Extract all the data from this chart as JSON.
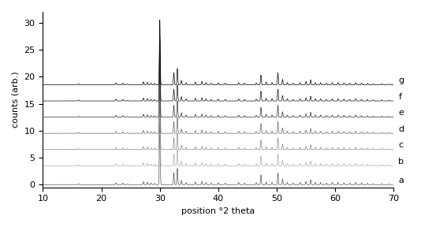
{
  "xlabel": "position °2 theta",
  "ylabel": "counts (arb.)",
  "xlim": [
    10,
    70
  ],
  "ylim": [
    -0.5,
    32
  ],
  "yticks": [
    0,
    5,
    10,
    15,
    20,
    25,
    30
  ],
  "xticks": [
    10,
    20,
    30,
    40,
    50,
    60,
    70
  ],
  "labels": [
    "a",
    "b",
    "c",
    "d",
    "e",
    "f",
    "g"
  ],
  "offsets": [
    0.0,
    3.5,
    6.5,
    9.5,
    12.5,
    15.5,
    18.5
  ],
  "colors": [
    "#555555",
    "#aaaaaa",
    "#888888",
    "#666666",
    "#333333",
    "#111111",
    "#000000"
  ],
  "background_color": "#ffffff",
  "label_fontsize": 8,
  "tick_fontsize": 8,
  "fig_width": 5.67,
  "fig_height": 2.88,
  "dpi": 100,
  "peaks": [
    [
      16.1,
      0.18
    ],
    [
      22.5,
      0.35
    ],
    [
      23.7,
      0.3
    ],
    [
      24.5,
      0.15
    ],
    [
      27.2,
      0.55
    ],
    [
      27.9,
      0.45
    ],
    [
      28.5,
      0.3
    ],
    [
      29.1,
      0.25
    ],
    [
      30.0,
      12.0
    ],
    [
      32.4,
      2.2
    ],
    [
      33.0,
      3.0
    ],
    [
      33.7,
      0.8
    ],
    [
      34.5,
      0.4
    ],
    [
      36.1,
      0.5
    ],
    [
      37.2,
      0.6
    ],
    [
      37.9,
      0.4
    ],
    [
      38.8,
      0.3
    ],
    [
      40.0,
      0.35
    ],
    [
      41.2,
      0.3
    ],
    [
      43.5,
      0.4
    ],
    [
      44.5,
      0.3
    ],
    [
      46.5,
      0.35
    ],
    [
      47.3,
      1.8
    ],
    [
      48.2,
      0.5
    ],
    [
      49.2,
      0.4
    ],
    [
      50.2,
      2.2
    ],
    [
      51.0,
      1.0
    ],
    [
      51.8,
      0.4
    ],
    [
      52.8,
      0.3
    ],
    [
      54.0,
      0.4
    ],
    [
      55.0,
      0.6
    ],
    [
      55.8,
      0.9
    ],
    [
      56.6,
      0.4
    ],
    [
      57.5,
      0.4
    ],
    [
      58.5,
      0.3
    ],
    [
      59.5,
      0.4
    ],
    [
      60.5,
      0.4
    ],
    [
      61.5,
      0.35
    ],
    [
      62.5,
      0.3
    ],
    [
      63.5,
      0.4
    ],
    [
      64.5,
      0.3
    ],
    [
      65.5,
      0.25
    ],
    [
      66.5,
      0.2
    ],
    [
      68.0,
      0.2
    ],
    [
      69.2,
      0.15
    ]
  ],
  "scales": [
    1.0,
    1.0,
    1.0,
    1.0,
    1.0,
    1.0,
    1.0
  ],
  "sigmas": [
    0.07,
    0.07,
    0.07,
    0.07,
    0.07,
    0.07,
    0.07
  ]
}
